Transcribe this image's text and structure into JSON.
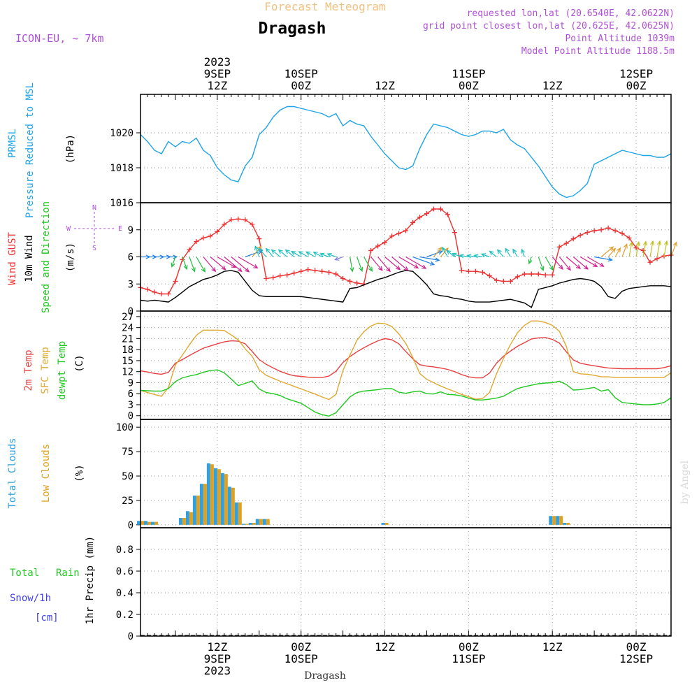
{
  "header": {
    "title_top": "Forecast Meteogram",
    "location": "Dragash",
    "model": "ICON-EU, ~ 7km",
    "requested": "requested lon,lat (20.6540E, 42.0622N)",
    "grid_point": "grid point closest lon,lat (20.625E, 42.0625N)",
    "point_altitude": "Point Altitude 1039m",
    "model_altitude": "Model Point Altitude 1188.5m",
    "footer_location": "Dragash",
    "watermark": "by Angel"
  },
  "time_axis": {
    "top_labels": [
      {
        "t": 12,
        "lines": [
          "2023",
          "9SEP",
          "12Z"
        ]
      },
      {
        "t": 24,
        "lines": [
          "10SEP",
          "00Z"
        ]
      },
      {
        "t": 36,
        "lines": [
          "12Z"
        ]
      },
      {
        "t": 48,
        "lines": [
          "11SEP",
          "00Z"
        ]
      },
      {
        "t": 60,
        "lines": [
          "12Z"
        ]
      },
      {
        "t": 72,
        "lines": [
          "12SEP",
          "00Z"
        ]
      }
    ],
    "bottom_labels": [
      {
        "t": 12,
        "lines": [
          "12Z",
          "9SEP",
          "2023"
        ]
      },
      {
        "t": 24,
        "lines": [
          "00Z",
          "10SEP"
        ]
      },
      {
        "t": 36,
        "lines": [
          "12Z"
        ]
      },
      {
        "t": 48,
        "lines": [
          "00Z",
          "11SEP"
        ]
      },
      {
        "t": 60,
        "lines": [
          "12Z"
        ]
      },
      {
        "t": 72,
        "lines": [
          "00Z",
          "12SEP"
        ]
      }
    ],
    "t_range": [
      1,
      77
    ],
    "t_units": "hours since 2023-09-09 00Z"
  },
  "panel_labels": {
    "pressure": [
      "PRMSL",
      "Pressure Reduced to MSL",
      "(hPa)"
    ],
    "wind": [
      "Wind GUST",
      "10m Wind",
      "Speed and Direction",
      "(m/s)"
    ],
    "compass": [
      "N",
      "W",
      "E",
      "S"
    ],
    "temperature": [
      "2m Temp",
      "SFC Temp",
      "dewpt Temp",
      "(C)"
    ],
    "clouds": [
      "Total Clouds",
      "Low Clouds",
      "(%)"
    ],
    "precip": [
      "Total",
      "Rain",
      "Snow/1h",
      "[cm]",
      "1hr Precip (mm)"
    ]
  },
  "colors": {
    "pressure": "#1ca3e8",
    "gust": "#ee3030",
    "wind": "#000000",
    "temp2m": "#e84040",
    "tempsfc": "#e0a830",
    "dewpt": "#20c820",
    "total_clouds": "#30a0e0",
    "low_clouds": "#e0a020",
    "title_top": "#f0c080",
    "info": "#b050d8",
    "rain": "#20c820",
    "snow": "#4040e8"
  },
  "chart_data": [
    {
      "type": "line",
      "name": "pressure",
      "ylim": [
        1016,
        1022.2
      ],
      "yticks": [
        1016,
        1018,
        1020
      ],
      "x": [
        1,
        2,
        3,
        4,
        5,
        6,
        7,
        8,
        9,
        10,
        11,
        12,
        13,
        14,
        15,
        16,
        17,
        18,
        19,
        20,
        21,
        22,
        23,
        24,
        25,
        26,
        27,
        28,
        29,
        30,
        31,
        32,
        33,
        34,
        35,
        36,
        37,
        38,
        39,
        40,
        41,
        42,
        43,
        44,
        45,
        46,
        47,
        48,
        49,
        50,
        51,
        52,
        53,
        54,
        55,
        56,
        57,
        58,
        59,
        60,
        61,
        62,
        63,
        64,
        65,
        66,
        67,
        68,
        69,
        70,
        71,
        72,
        73,
        74,
        75,
        76,
        77
      ],
      "series": [
        {
          "name": "PRMSL",
          "values": [
            1019.9,
            1019.5,
            1019.0,
            1018.8,
            1019.5,
            1019.2,
            1019.5,
            1019.4,
            1019.7,
            1019.0,
            1018.7,
            1018.0,
            1017.6,
            1017.3,
            1017.2,
            1018.1,
            1018.6,
            1019.9,
            1020.3,
            1020.9,
            1021.3,
            1021.5,
            1021.5,
            1021.4,
            1021.3,
            1021.2,
            1021.1,
            1020.9,
            1021.1,
            1020.4,
            1020.7,
            1020.5,
            1020.4,
            1019.8,
            1019.3,
            1018.8,
            1018.4,
            1018.0,
            1017.9,
            1018.1,
            1019.1,
            1019.9,
            1020.5,
            1020.4,
            1020.3,
            1020.1,
            1019.9,
            1019.8,
            1019.9,
            1020.1,
            1020.1,
            1020.0,
            1020.2,
            1019.6,
            1019.3,
            1019.1,
            1018.6,
            1018.1,
            1017.5,
            1016.9,
            1016.5,
            1016.3,
            1016.4,
            1016.7,
            1017.1,
            1018.2,
            1018.4,
            1018.6,
            1018.8,
            1019.0,
            1018.9,
            1018.8,
            1018.7,
            1018.7,
            1018.6,
            1018.6,
            1018.8
          ]
        }
      ]
    },
    {
      "type": "line",
      "name": "wind",
      "ylim": [
        0,
        12
      ],
      "yticks": [
        0,
        3,
        6,
        9
      ],
      "x": [
        1,
        2,
        3,
        4,
        5,
        6,
        7,
        8,
        9,
        10,
        11,
        12,
        13,
        14,
        15,
        16,
        17,
        18,
        19,
        20,
        21,
        22,
        23,
        24,
        25,
        26,
        27,
        28,
        29,
        30,
        31,
        32,
        33,
        34,
        35,
        36,
        37,
        38,
        39,
        40,
        41,
        42,
        43,
        44,
        45,
        46,
        47,
        48,
        49,
        50,
        51,
        52,
        53,
        54,
        55,
        56,
        57,
        58,
        59,
        60,
        61,
        62,
        63,
        64,
        65,
        66,
        67,
        68,
        69,
        70,
        71,
        72,
        73,
        74,
        75,
        76,
        77
      ],
      "series": [
        {
          "name": "Wind GUST",
          "values": [
            2.6,
            2.4,
            2.1,
            1.9,
            1.9,
            3.3,
            5.7,
            6.8,
            7.7,
            8.1,
            8.3,
            8.8,
            9.6,
            10.1,
            10.2,
            10.1,
            9.6,
            8.0,
            3.6,
            3.7,
            3.9,
            4.0,
            4.2,
            4.4,
            4.6,
            4.5,
            4.4,
            4.3,
            4.1,
            3.6,
            3.3,
            3.1,
            3.0,
            6.7,
            7.2,
            7.6,
            8.3,
            8.6,
            8.9,
            9.8,
            10.4,
            10.8,
            11.3,
            11.3,
            10.7,
            8.7,
            4.5,
            4.4,
            4.4,
            4.3,
            3.9,
            3.4,
            3.3,
            3.3,
            3.8,
            4.1,
            4.1,
            4.1,
            4.0,
            4.0,
            7.1,
            7.5,
            8.0,
            8.4,
            8.7,
            8.9,
            9.0,
            9.2,
            8.9,
            8.6,
            8.1,
            7.0,
            6.7,
            5.4,
            5.8,
            6.1,
            6.2
          ],
          "legend_style": "plus-markers"
        },
        {
          "name": "10m Wind",
          "values": [
            1.2,
            1.1,
            1.2,
            1.1,
            1.0,
            1.5,
            2.1,
            2.7,
            3.1,
            3.5,
            3.7,
            4.0,
            4.4,
            4.5,
            4.3,
            3.3,
            2.3,
            1.7,
            1.6,
            1.6,
            1.6,
            1.6,
            1.6,
            1.6,
            1.5,
            1.4,
            1.3,
            1.2,
            1.1,
            1.0,
            2.5,
            2.6,
            2.9,
            3.2,
            3.5,
            3.7,
            4.0,
            4.3,
            4.5,
            4.4,
            3.7,
            2.9,
            1.9,
            1.7,
            1.6,
            1.4,
            1.3,
            1.1,
            1.0,
            1.0,
            1.0,
            1.1,
            1.2,
            1.3,
            1.1,
            0.9,
            0.4,
            2.4,
            2.6,
            2.8,
            3.1,
            3.3,
            3.5,
            3.6,
            3.5,
            3.3,
            2.7,
            1.6,
            1.4,
            2.2,
            2.5,
            2.6,
            2.7,
            2.8,
            2.8,
            2.8,
            2.7
          ]
        }
      ],
      "wind_dir_deg": [
        270,
        270,
        270,
        270,
        270,
        20,
        340,
        340,
        330,
        320,
        310,
        300,
        310,
        310,
        300,
        250,
        220,
        160,
        140,
        140,
        130,
        130,
        130,
        120,
        120,
        120,
        120,
        110,
        110,
        70,
        350,
        340,
        330,
        320,
        320,
        310,
        310,
        300,
        300,
        290,
        280,
        250,
        220,
        220,
        150,
        130,
        110,
        100,
        100,
        100,
        110,
        130,
        140,
        150,
        150,
        160,
        20,
        340,
        330,
        320,
        320,
        310,
        310,
        300,
        300,
        280,
        230,
        220,
        210,
        200,
        190,
        190,
        190,
        190,
        190,
        190,
        200
      ]
    },
    {
      "type": "line",
      "name": "temperature",
      "ylim": [
        -1,
        28.5
      ],
      "yticks": [
        0,
        3,
        6,
        9,
        12,
        15,
        18,
        21,
        24,
        27
      ],
      "x": [
        1,
        2,
        3,
        4,
        5,
        6,
        7,
        8,
        9,
        10,
        11,
        12,
        13,
        14,
        15,
        16,
        17,
        18,
        19,
        20,
        21,
        22,
        23,
        24,
        25,
        26,
        27,
        28,
        29,
        30,
        31,
        32,
        33,
        34,
        35,
        36,
        37,
        38,
        39,
        40,
        41,
        42,
        43,
        44,
        45,
        46,
        47,
        48,
        49,
        50,
        51,
        52,
        53,
        54,
        55,
        56,
        57,
        58,
        59,
        60,
        61,
        62,
        63,
        64,
        65,
        66,
        67,
        68,
        69,
        70,
        71,
        72,
        73,
        74,
        75,
        76,
        77
      ],
      "series": [
        {
          "name": "2m Temp",
          "values": [
            12.2,
            11.9,
            11.5,
            11.3,
            11.8,
            14.3,
            15.3,
            16.4,
            17.4,
            18.4,
            19.0,
            19.6,
            20.1,
            20.4,
            20.3,
            19.6,
            17.5,
            15.3,
            14.0,
            13.0,
            12.1,
            11.4,
            10.9,
            10.7,
            10.5,
            10.4,
            10.4,
            10.8,
            12.1,
            14.5,
            16.1,
            17.4,
            18.5,
            19.5,
            20.4,
            21.0,
            20.7,
            19.6,
            17.5,
            15.5,
            13.9,
            13.5,
            13.3,
            13.0,
            12.6,
            12.0,
            11.2,
            10.6,
            10.3,
            10.3,
            11.6,
            14.3,
            16.2,
            17.6,
            18.9,
            19.9,
            20.9,
            21.2,
            21.3,
            20.8,
            19.8,
            17.4,
            15.2,
            14.3,
            13.9,
            13.6,
            13.3,
            13.0,
            12.9,
            12.8,
            12.8,
            12.8,
            12.8,
            12.8,
            12.8,
            13.1,
            13.6
          ]
        },
        {
          "name": "SFC Temp",
          "values": [
            6.9,
            6.3,
            5.8,
            5.3,
            7.7,
            13.8,
            16.5,
            19.3,
            21.9,
            23.3,
            23.3,
            23.3,
            23.2,
            22.0,
            20.7,
            18.2,
            16.2,
            12.5,
            11.0,
            10.2,
            9.4,
            8.7,
            8.0,
            7.3,
            6.6,
            5.9,
            5.1,
            4.4,
            5.8,
            12.3,
            16.5,
            20.5,
            22.9,
            24.4,
            25.2,
            25.1,
            24.3,
            22.3,
            19.7,
            15.9,
            11.5,
            9.9,
            9.0,
            8.1,
            7.3,
            6.6,
            5.8,
            5.2,
            4.5,
            4.7,
            6.3,
            11.4,
            15.6,
            19.4,
            22.6,
            24.6,
            25.8,
            25.8,
            25.4,
            24.6,
            23.0,
            18.9,
            12.0,
            11.4,
            11.3,
            11.0,
            10.6,
            10.6,
            10.4,
            10.4,
            10.4,
            10.4,
            10.4,
            10.4,
            10.4,
            10.4,
            11.7
          ]
        },
        {
          "name": "dewpt Temp",
          "values": [
            6.9,
            6.8,
            6.7,
            6.7,
            7.4,
            9.3,
            10.3,
            10.8,
            11.2,
            11.8,
            12.3,
            12.5,
            11.7,
            10.0,
            8.2,
            8.8,
            9.5,
            7.3,
            6.3,
            6.0,
            5.5,
            4.6,
            4.0,
            3.4,
            2.2,
            1.0,
            0.3,
            -0.1,
            0.8,
            3.0,
            5.1,
            6.3,
            6.7,
            6.9,
            7.1,
            7.4,
            7.4,
            6.4,
            6.1,
            6.5,
            6.7,
            6.0,
            5.9,
            6.5,
            5.8,
            5.7,
            5.4,
            4.8,
            4.3,
            4.3,
            4.5,
            4.8,
            5.3,
            6.4,
            7.4,
            7.9,
            8.3,
            8.7,
            8.9,
            9.0,
            9.4,
            8.5,
            7.0,
            7.1,
            7.4,
            7.7,
            6.7,
            7.1,
            4.9,
            3.6,
            3.4,
            3.2,
            3.0,
            3.0,
            3.2,
            3.6,
            4.9
          ]
        }
      ]
    },
    {
      "type": "bar",
      "name": "clouds",
      "ylim": [
        -3,
        108
      ],
      "yticks": [
        0,
        25,
        50,
        75,
        100
      ],
      "x": [
        1,
        2,
        3,
        7,
        8,
        9,
        10,
        11,
        12,
        13,
        14,
        15,
        16,
        17,
        18,
        19,
        36,
        60,
        61,
        62
      ],
      "series": [
        {
          "name": "Total Clouds",
          "values": [
            4,
            4,
            3,
            7,
            14,
            30,
            42,
            63,
            58,
            53,
            39,
            23,
            1,
            2,
            6,
            6,
            2,
            9,
            9,
            2
          ]
        },
        {
          "name": "Low Clouds",
          "values": [
            4,
            3,
            3,
            7,
            13,
            30,
            42,
            62,
            57,
            52,
            38,
            23,
            1,
            2,
            6,
            6,
            2,
            9,
            9,
            2
          ]
        }
      ]
    },
    {
      "type": "bar",
      "name": "precip",
      "ylim": [
        0,
        1.0
      ],
      "yticks": [
        0,
        0.2,
        0.4,
        0.6,
        0.8
      ],
      "series": [
        {
          "name": "Total",
          "values": []
        },
        {
          "name": "Rain",
          "values": []
        },
        {
          "name": "Snow/1h",
          "values": []
        }
      ]
    }
  ]
}
